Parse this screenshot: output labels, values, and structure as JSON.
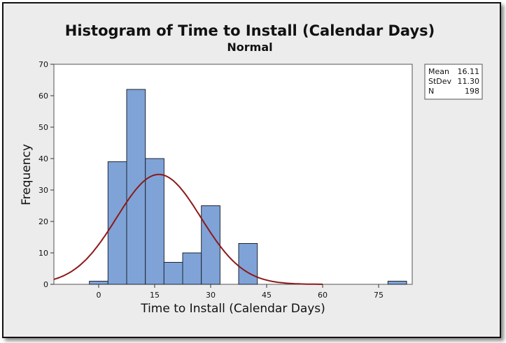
{
  "chart_data": {
    "type": "bar",
    "title": "Histogram of Time to Install (Calendar Days)",
    "subtitle": "Normal",
    "xlabel": "Time to Install (Calendar Days)",
    "ylabel": "Frequency",
    "xlim": [
      -12,
      84
    ],
    "ylim": [
      0,
      70
    ],
    "xticks": [
      0,
      15,
      30,
      45,
      60,
      75
    ],
    "yticks": [
      0,
      10,
      20,
      30,
      40,
      50,
      60,
      70
    ],
    "bin_width": 5,
    "bins": [
      {
        "start": -2.5,
        "end": 2.5,
        "count": 1
      },
      {
        "start": 2.5,
        "end": 7.5,
        "count": 39
      },
      {
        "start": 7.5,
        "end": 12.5,
        "count": 62
      },
      {
        "start": 12.5,
        "end": 17.5,
        "count": 40
      },
      {
        "start": 17.5,
        "end": 22.5,
        "count": 7
      },
      {
        "start": 22.5,
        "end": 27.5,
        "count": 10
      },
      {
        "start": 27.5,
        "end": 32.5,
        "count": 25
      },
      {
        "start": 32.5,
        "end": 37.5,
        "count": 0
      },
      {
        "start": 37.5,
        "end": 42.5,
        "count": 13
      },
      {
        "start": 42.5,
        "end": 47.5,
        "count": 0
      },
      {
        "start": 47.5,
        "end": 52.5,
        "count": 0
      },
      {
        "start": 52.5,
        "end": 57.5,
        "count": 0
      },
      {
        "start": 57.5,
        "end": 62.5,
        "count": 0
      },
      {
        "start": 62.5,
        "end": 67.5,
        "count": 0
      },
      {
        "start": 67.5,
        "end": 72.5,
        "count": 0
      },
      {
        "start": 72.5,
        "end": 77.5,
        "count": 0
      },
      {
        "start": 77.5,
        "end": 82.5,
        "count": 1
      }
    ],
    "fit": {
      "distribution": "normal",
      "mean": 16.11,
      "stdev": 11.3,
      "n": 198
    },
    "legend": [
      {
        "label": "Mean",
        "value": "16.11"
      },
      {
        "label": "StDev",
        "value": "11.30"
      },
      {
        "label": "N",
        "value": "198"
      }
    ],
    "legend_position": "right",
    "grid": false,
    "colors": {
      "bar_fill": "#7fa3d7",
      "bar_stroke": "#1f2633",
      "curve": "#8b1a1a",
      "plot_bg": "#ffffff",
      "panel_bg": "#ececec"
    }
  }
}
